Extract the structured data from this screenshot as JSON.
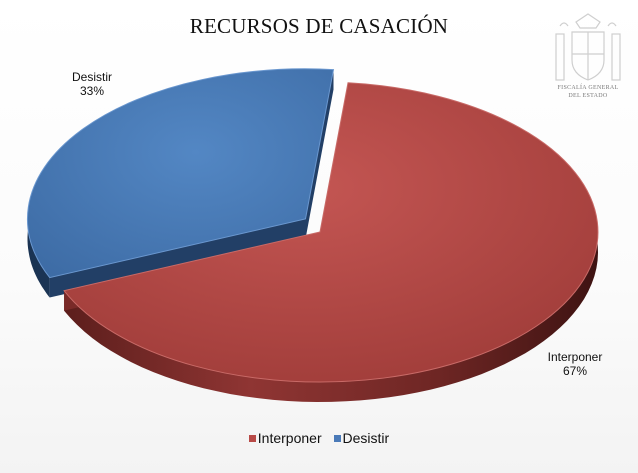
{
  "emblem": {
    "icon": "coat-of-arms-icon",
    "caption_line1": "FISCALÍA GENERAL",
    "caption_line2": "DEL ESTADO"
  },
  "chart_data": {
    "type": "pie",
    "title": "RECURSOS DE CASACIÓN",
    "slices": [
      {
        "label": "Interponer",
        "value": 67,
        "percent_label": "67%",
        "color": "#b84a47"
      },
      {
        "label": "Desistir",
        "value": 33,
        "percent_label": "33%",
        "color": "#4a7ab8"
      }
    ],
    "exploded_slice": "Desistir",
    "legend_position": "bottom",
    "legend": [
      "Interponer",
      "Desistir"
    ]
  }
}
